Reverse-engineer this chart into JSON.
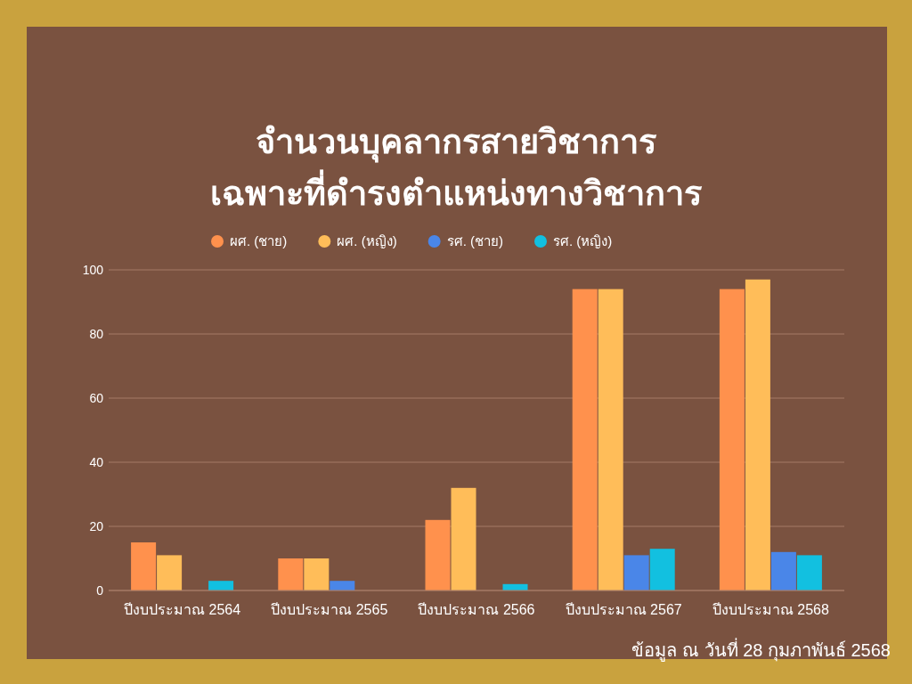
{
  "chart_data": {
    "type": "bar",
    "title": "จำนวนบุคลากรสายวิชาการ\nเฉพาะที่ดำรงตำแหน่งทางวิชาการ",
    "categories": [
      "ปีงบประมาณ 2564",
      "ปีงบประมาณ 2565",
      "ปีงบประมาณ 2566",
      "ปีงบประมาณ 2567",
      "ปีงบประมาณ 2568"
    ],
    "series": [
      {
        "name": "ผศ. (ชาย)",
        "color": "#ff914d",
        "values": [
          15,
          10,
          22,
          94,
          94
        ]
      },
      {
        "name": "ผศ. (หญิง)",
        "color": "#ffbd59",
        "values": [
          11,
          10,
          32,
          94,
          97
        ]
      },
      {
        "name": "รศ. (ชาย)",
        "color": "#4a86e8",
        "values": [
          0,
          3,
          0,
          11,
          12
        ]
      },
      {
        "name": "รศ. (หญิง)",
        "color": "#12c0e0",
        "values": [
          3,
          0,
          2,
          13,
          11
        ]
      }
    ],
    "ylim": [
      0,
      100
    ],
    "yticks": [
      0,
      20,
      40,
      60,
      80,
      100
    ],
    "grid": "y",
    "legend": "top",
    "annotations": [
      "ข้อมูล ณ วันที่ 28 กุมภาพันธ์ 2568"
    ]
  }
}
